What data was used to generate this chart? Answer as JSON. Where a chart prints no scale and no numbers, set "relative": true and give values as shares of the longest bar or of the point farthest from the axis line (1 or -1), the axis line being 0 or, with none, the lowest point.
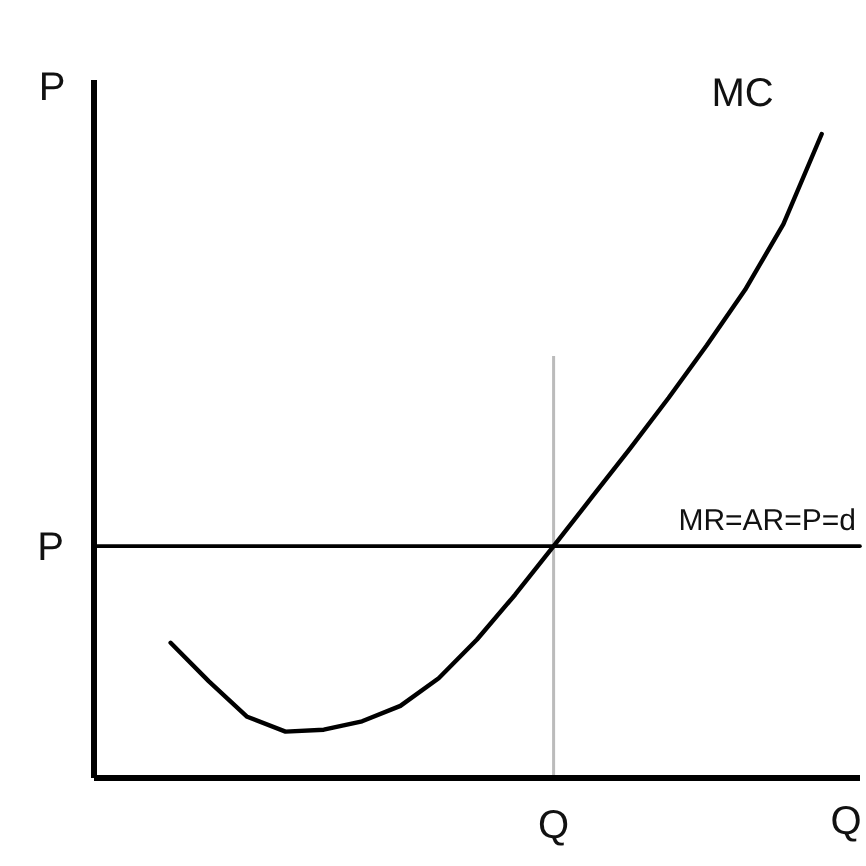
{
  "chart_data": {
    "type": "line",
    "xlabel": "Q",
    "ylabel": "P",
    "relative": true,
    "categories": [
      null,
      null,
      null,
      null,
      null,
      null,
      null,
      null,
      null,
      null,
      null,
      null,
      null,
      null,
      null,
      null,
      null,
      null,
      null,
      null,
      null
    ],
    "annotations": [
      "P",
      "Q"
    ],
    "legend": false,
    "marker": "none",
    "line_style": "solid",
    "series": [
      {
        "name": "MC",
        "color": "#000000",
        "values": [
          null,
          null,
          0.21,
          0.15,
          0.095,
          0.072,
          0.075,
          0.088,
          0.112,
          0.155,
          0.215,
          0.285,
          0.36,
          0.436,
          0.512,
          0.59,
          0.672,
          0.758,
          0.86,
          1,
          null
        ]
      },
      {
        "name": "MR=AR=P=d",
        "color": "#000000",
        "values": [
          0.36,
          0.36,
          0.36,
          0.36,
          0.36,
          0.36,
          0.36,
          0.36,
          0.36,
          0.36,
          0.36,
          0.36,
          0.36,
          0.36,
          0.36,
          0.36,
          0.36,
          0.36,
          0.36,
          0.36,
          0.36
        ]
      }
    ]
  }
}
